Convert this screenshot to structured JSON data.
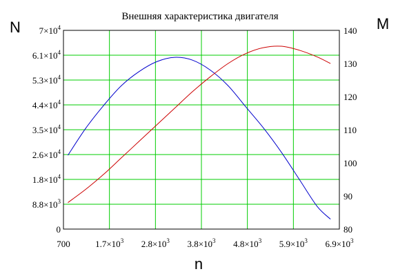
{
  "chart_data": {
    "type": "line",
    "title": "Внешняя характеристика двигателя",
    "xlabel": "n",
    "ylabel_left": "N",
    "ylabel_right": "M",
    "xlim": [
      700,
      6900
    ],
    "ylim_left": [
      0,
      70000
    ],
    "ylim_right": [
      80,
      140
    ],
    "grid": true,
    "x_ticks": [
      {
        "value": 700,
        "base": "700",
        "exp": ""
      },
      {
        "value": 1733,
        "base": "1.7×10",
        "exp": "3"
      },
      {
        "value": 2767,
        "base": "2.8×10",
        "exp": "3"
      },
      {
        "value": 3800,
        "base": "3.8×10",
        "exp": "3"
      },
      {
        "value": 4833,
        "base": "4.8×10",
        "exp": "3"
      },
      {
        "value": 5867,
        "base": "5.9×10",
        "exp": "3"
      },
      {
        "value": 6900,
        "base": "6.9×10",
        "exp": "3"
      }
    ],
    "y_left_ticks": [
      {
        "value": 0,
        "base": "0",
        "exp": ""
      },
      {
        "value": 8750,
        "base": "8.8×10",
        "exp": "3"
      },
      {
        "value": 17500,
        "base": "1.8×10",
        "exp": "4"
      },
      {
        "value": 26250,
        "base": "2.6×10",
        "exp": "4"
      },
      {
        "value": 35000,
        "base": "3.5×10",
        "exp": "4"
      },
      {
        "value": 43750,
        "base": "4.4×10",
        "exp": "4"
      },
      {
        "value": 52500,
        "base": "5.3×10",
        "exp": "4"
      },
      {
        "value": 61250,
        "base": "6.1×10",
        "exp": "4"
      },
      {
        "value": 70000,
        "base": "7×10",
        "exp": "4"
      }
    ],
    "y_right_ticks": [
      80,
      90,
      100,
      110,
      120,
      130,
      140
    ],
    "series": [
      {
        "axis": "left",
        "color": "#0000cc",
        "x": [
          800,
          1200,
          1600,
          2000,
          2400,
          2800,
          3200,
          3600,
          4000,
          4400,
          4800,
          5200,
          5600,
          6000,
          6400,
          6700
        ],
        "y": [
          26000,
          35500,
          43500,
          50500,
          55500,
          59000,
          60500,
          59500,
          56000,
          50500,
          43000,
          35500,
          27000,
          17500,
          8000,
          3500
        ]
      },
      {
        "axis": "right",
        "color": "#cc0000",
        "x": [
          800,
          1200,
          1600,
          2000,
          2400,
          2800,
          3200,
          3600,
          4000,
          4400,
          4800,
          5200,
          5600,
          6000,
          6400,
          6700
        ],
        "y": [
          88,
          92,
          96.5,
          101.5,
          106.5,
          111.5,
          116.5,
          121.5,
          126,
          130,
          133,
          134.8,
          135.2,
          134,
          132,
          130
        ]
      }
    ]
  }
}
